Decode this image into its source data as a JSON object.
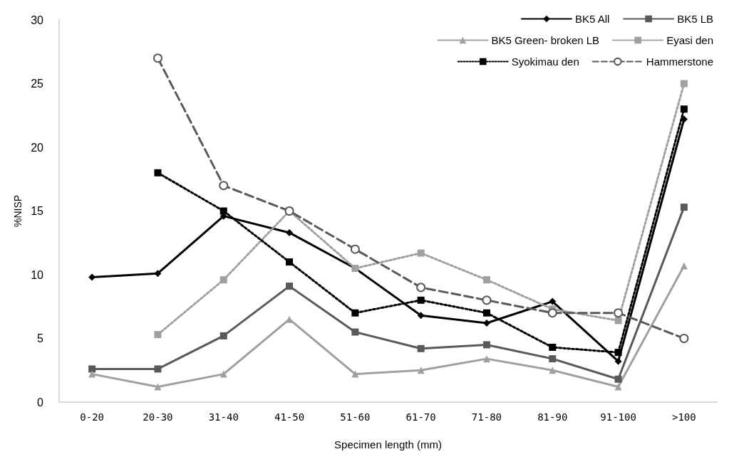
{
  "chart_data": {
    "type": "line",
    "xlabel": "Specimen length (mm)",
    "ylabel": "%NISP",
    "categories": [
      "0-20",
      "20-30",
      "31-40",
      "41-50",
      "51-60",
      "61-70",
      "71-80",
      "81-90",
      "91-100",
      ">100"
    ],
    "ylim": [
      0,
      30
    ],
    "yticks": [
      0,
      5,
      10,
      15,
      20,
      25,
      30
    ],
    "grid": false,
    "legend": "top right",
    "series": [
      {
        "name": "BK5 All",
        "color": "#000000",
        "marker": "diamond",
        "line_style": "solid",
        "values": [
          9.8,
          10.1,
          14.6,
          13.3,
          10.5,
          6.8,
          6.2,
          7.9,
          3.2,
          22.2
        ]
      },
      {
        "name": "BK5 LB",
        "color": "#595959",
        "marker": "square",
        "line_style": "solid",
        "values": [
          2.6,
          2.6,
          5.2,
          9.1,
          5.5,
          4.2,
          4.5,
          3.4,
          1.8,
          15.3
        ]
      },
      {
        "name": "BK5 Green- broken LB",
        "color": "#a0a0a0",
        "marker": "triangle",
        "line_style": "solid",
        "values": [
          2.2,
          1.2,
          2.2,
          6.5,
          2.2,
          2.5,
          3.4,
          2.5,
          1.2,
          10.7
        ]
      },
      {
        "name": "Eyasi den",
        "color": "#a0a0a0",
        "marker": "square",
        "line_style": "dotted",
        "values": [
          null,
          5.3,
          9.6,
          15.0,
          10.5,
          11.7,
          9.6,
          7.3,
          6.4,
          25.0
        ]
      },
      {
        "name": "Syokimau den",
        "color": "#000000",
        "marker": "square",
        "line_style": "dotted",
        "values": [
          null,
          18.0,
          15.0,
          11.0,
          7.0,
          8.0,
          7.0,
          4.3,
          3.9,
          23.0
        ]
      },
      {
        "name": "Hammerstone",
        "color": "#595959",
        "marker": "circle",
        "line_style": "dashed",
        "values": [
          null,
          27.0,
          17.0,
          15.0,
          12.0,
          9.0,
          8.0,
          7.0,
          7.0,
          5.0
        ]
      }
    ]
  }
}
